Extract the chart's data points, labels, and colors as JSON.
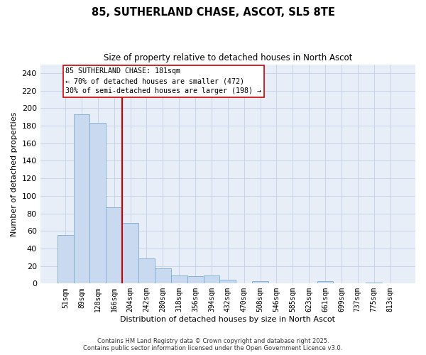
{
  "title": "85, SUTHERLAND CHASE, ASCOT, SL5 8TE",
  "subtitle": "Size of property relative to detached houses in North Ascot",
  "xlabel": "Distribution of detached houses by size in North Ascot",
  "ylabel": "Number of detached properties",
  "bar_labels": [
    "51sqm",
    "89sqm",
    "128sqm",
    "166sqm",
    "204sqm",
    "242sqm",
    "280sqm",
    "318sqm",
    "356sqm",
    "394sqm",
    "432sqm",
    "470sqm",
    "508sqm",
    "546sqm",
    "585sqm",
    "623sqm",
    "661sqm",
    "699sqm",
    "737sqm",
    "775sqm",
    "813sqm"
  ],
  "bar_values": [
    55,
    193,
    183,
    87,
    69,
    29,
    17,
    9,
    8,
    9,
    4,
    0,
    3,
    0,
    0,
    0,
    3,
    0,
    0,
    1,
    0
  ],
  "bar_color": "#c9d9f0",
  "bar_edge_color": "#7aaccf",
  "vline_color": "#cc0000",
  "ylim": [
    0,
    250
  ],
  "yticks": [
    0,
    20,
    40,
    60,
    80,
    100,
    120,
    140,
    160,
    180,
    200,
    220,
    240
  ],
  "annotation_line1": "85 SUTHERLAND CHASE: 181sqm",
  "annotation_line2": "← 70% of detached houses are smaller (472)",
  "annotation_line3": "30% of semi-detached houses are larger (198) →",
  "annotation_box_color": "#ffffff",
  "annotation_box_edge": "#cc0000",
  "bg_color": "#e8eef8",
  "grid_color": "#c8d4e8",
  "footer1": "Contains HM Land Registry data © Crown copyright and database right 2025.",
  "footer2": "Contains public sector information licensed under the Open Government Licence v3.0."
}
